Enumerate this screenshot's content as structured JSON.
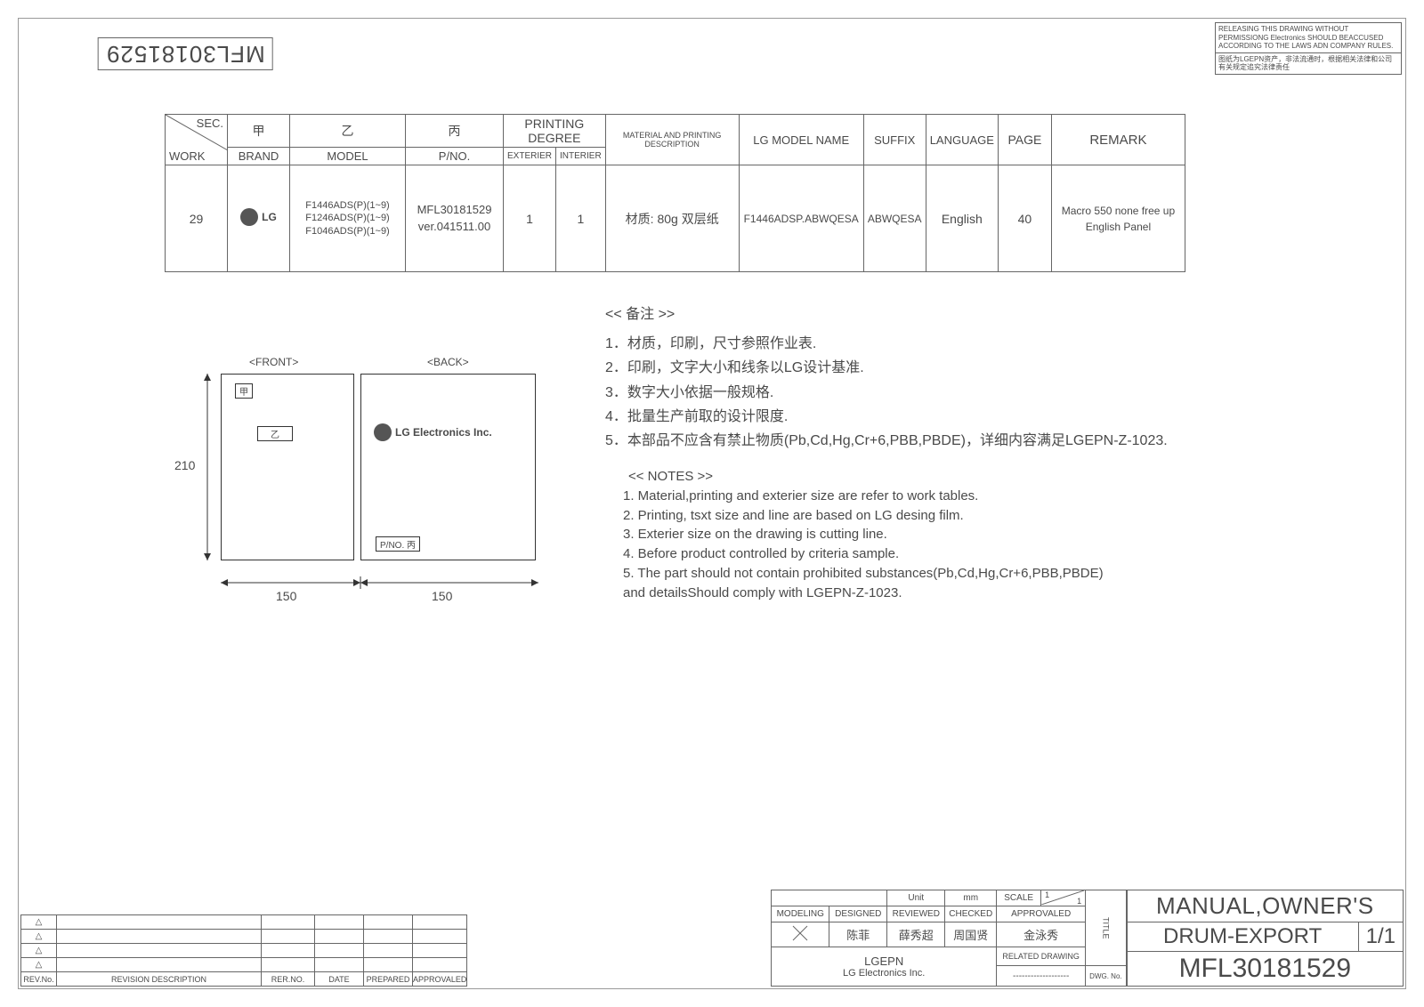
{
  "rotated_part_number": "MFL30181529",
  "warning": {
    "en": "RELEASING THIS DRAWING WITHOUT PERMISSIONG Electronics SHOULD BEACCUSED ACCORDING TO THE LAWS ADN COMPANY RULES.",
    "cn": "图纸为LGEPN资产，非法流通时，根据相关法律和公司有关规定追究法律责任"
  },
  "spec": {
    "headers": {
      "sec": "SEC.",
      "work": "WORK",
      "jia": "甲",
      "brand": "BRAND",
      "yi": "乙",
      "model": "MODEL",
      "bing": "丙",
      "pno": "P/NO.",
      "printing_degree": "PRINTING DEGREE",
      "exterier": "EXTERIER",
      "interier": "INTERIER",
      "material_desc": "MATERIAL AND PRINTING DESCRIPTION",
      "lg_model": "LG MODEL NAME",
      "suffix": "SUFFIX",
      "language": "LANGUAGE",
      "page": "PAGE",
      "remark": "REMARK"
    },
    "row": {
      "work": "29",
      "brand": "LG",
      "model_lines": [
        "F1446ADS(P)(1~9)",
        "F1246ADS(P)(1~9)",
        "F1046ADS(P)(1~9)"
      ],
      "pno_lines": [
        "MFL30181529",
        "ver.041511.00"
      ],
      "exterier": "1",
      "interier": "1",
      "material": "材质: 80g 双层纸",
      "lg_model": "F1446ADSP.ABWQESA",
      "suffix": "ABWQESA",
      "language": "English",
      "page": "40",
      "remark_lines": [
        "Macro 550  none free up",
        "English   Panel"
      ]
    }
  },
  "diagram": {
    "front": "<FRONT>",
    "back": "<BACK>",
    "jia": "甲",
    "yi": "乙",
    "lg_text": "LG Electronics Inc.",
    "pno_label": "P/NO. 丙",
    "height": "210",
    "width1": "150",
    "width2": "150"
  },
  "notes_cn": {
    "title": "<< 备注 >>",
    "items": [
      "1．材质，印刷，尺寸参照作业表.",
      "2．印刷，文字大小和线条以LG设计基准.",
      "3．数字大小依据一般规格.",
      "4．批量生产前取的设计限度.",
      "5．本部品不应含有禁止物质(Pb,Cd,Hg,Cr+6,PBB,PBDE)，详细内容满足LGEPN-Z-1023."
    ]
  },
  "notes_en": {
    "title": "<< NOTES >>",
    "items": [
      "1. Material,printing and exterier size are refer to work tables.",
      "2. Printing, tsxt  size and line are based on LG desing film.",
      "3. Exterier size on the drawing is cutting line.",
      "4. Before product controlled by criteria sample.",
      "5. The part should not contain prohibited substances(Pb,Cd,Hg,Cr+6,PBB,PBDE)",
      "    and detailsShould comply with LGEPN-Z-1023."
    ]
  },
  "rev_table": {
    "headers": [
      "REV.No.",
      "REVISION DESCRIPTION",
      "RER.NO.",
      "DATE",
      "PREPARED",
      "APPROVALED"
    ]
  },
  "titleblock": {
    "unit_label": "Unit",
    "unit_val": "mm",
    "scale_label": "SCALE",
    "scale_val": "1/1",
    "modeling": "MODELING",
    "designed": "DESIGNED",
    "reviewed": "REVIEWED",
    "checked": "CHECKED",
    "approvaled": "APPROVALED",
    "names": {
      "designed": "陈菲",
      "reviewed": "薛秀超",
      "checked": "周国贤",
      "approvaled": "金泳秀"
    },
    "org": "LGEPN",
    "org_sub": "LG Electronics Inc.",
    "related": "RELATED DRAWING",
    "related_val": "-------------------",
    "title_col": "TITLE",
    "dwg_no_label": "DWG. No.",
    "title1": "MANUAL,OWNER'S",
    "title2": "DRUM-EXPORT",
    "page": "1/1",
    "pn": "MFL30181529"
  }
}
